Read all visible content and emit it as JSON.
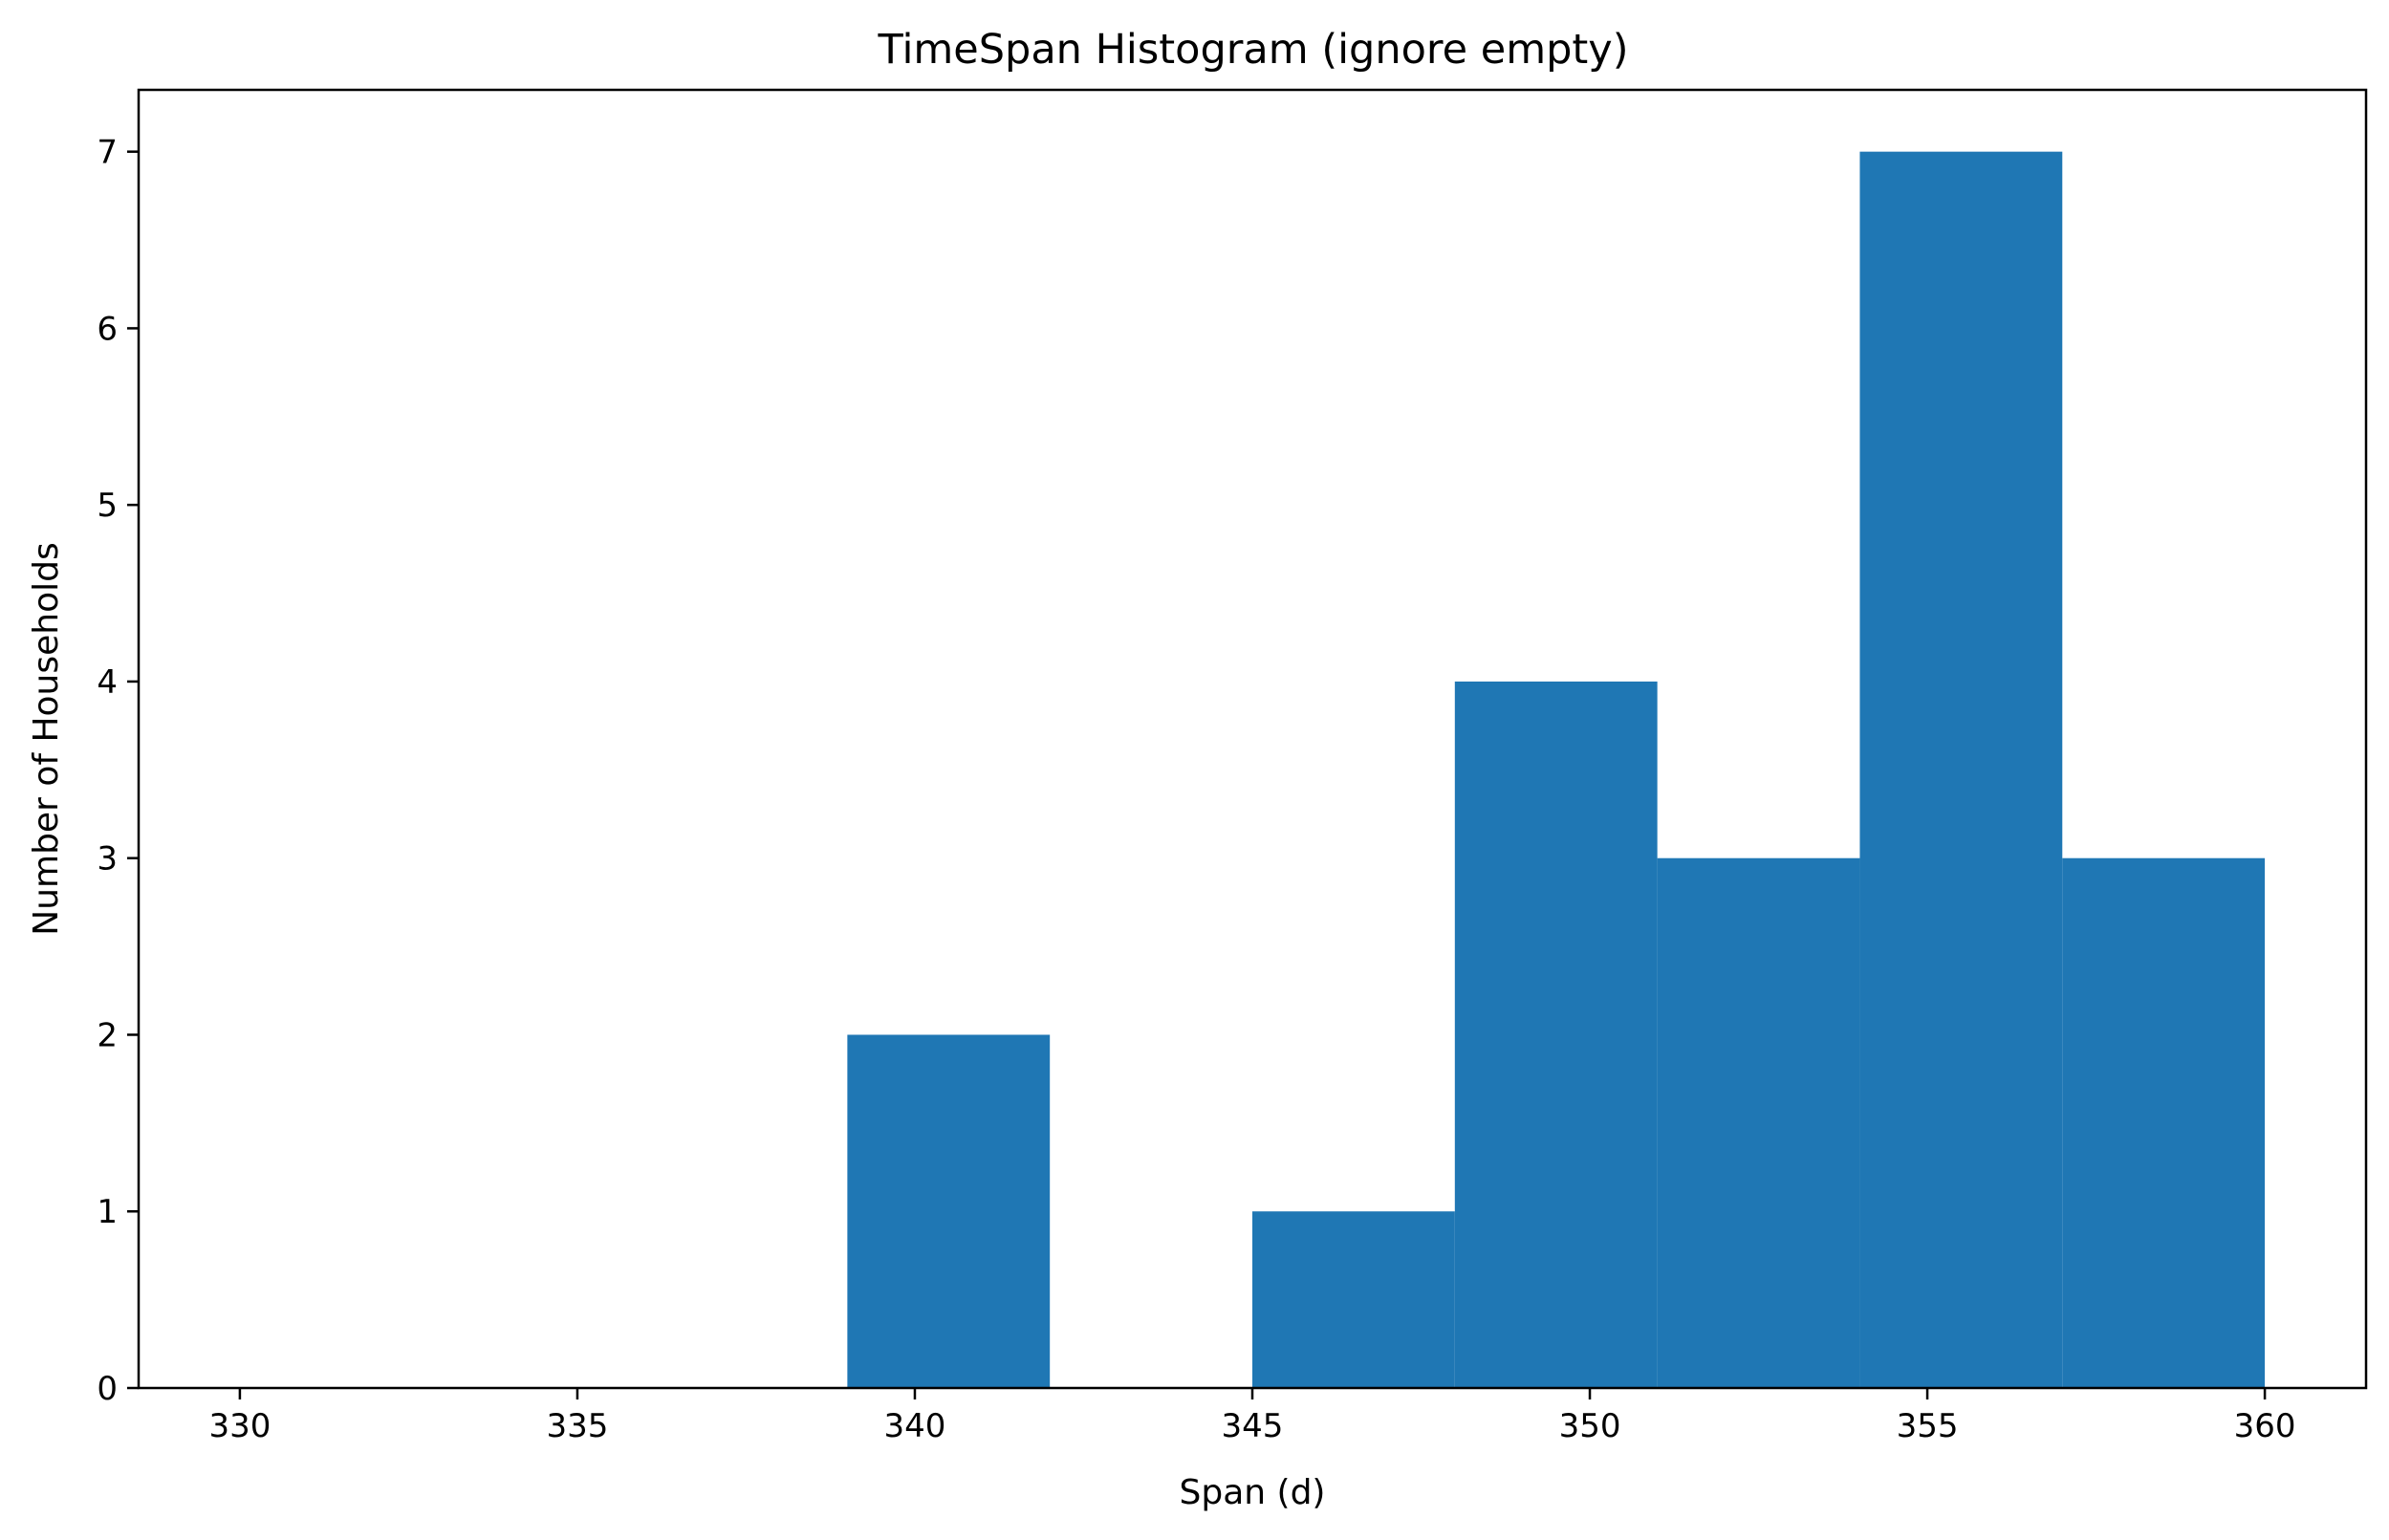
{
  "chart_data": {
    "type": "bar",
    "title": "TimeSpan Histogram (ignore empty)",
    "xlabel": "Span (d)",
    "ylabel": "Number of Households",
    "bin_edges": [
      330,
      333,
      336,
      339,
      342,
      345,
      348,
      351,
      354,
      357,
      360
    ],
    "values": [
      0,
      0,
      0,
      2,
      0,
      1,
      4,
      3,
      7,
      3
    ],
    "xlim": [
      328.5,
      361.5
    ],
    "ylim": [
      0,
      7.35
    ],
    "xticks": [
      330,
      335,
      340,
      345,
      350,
      355,
      360
    ],
    "xtick_labels": [
      "330",
      "335",
      "340",
      "345",
      "350",
      "355",
      "360"
    ],
    "yticks": [
      0,
      1,
      2,
      3,
      4,
      5,
      6,
      7
    ],
    "ytick_labels": [
      "0",
      "1",
      "2",
      "3",
      "4",
      "5",
      "6",
      "7"
    ],
    "grid": false,
    "bar_color": "#1f77b4"
  }
}
